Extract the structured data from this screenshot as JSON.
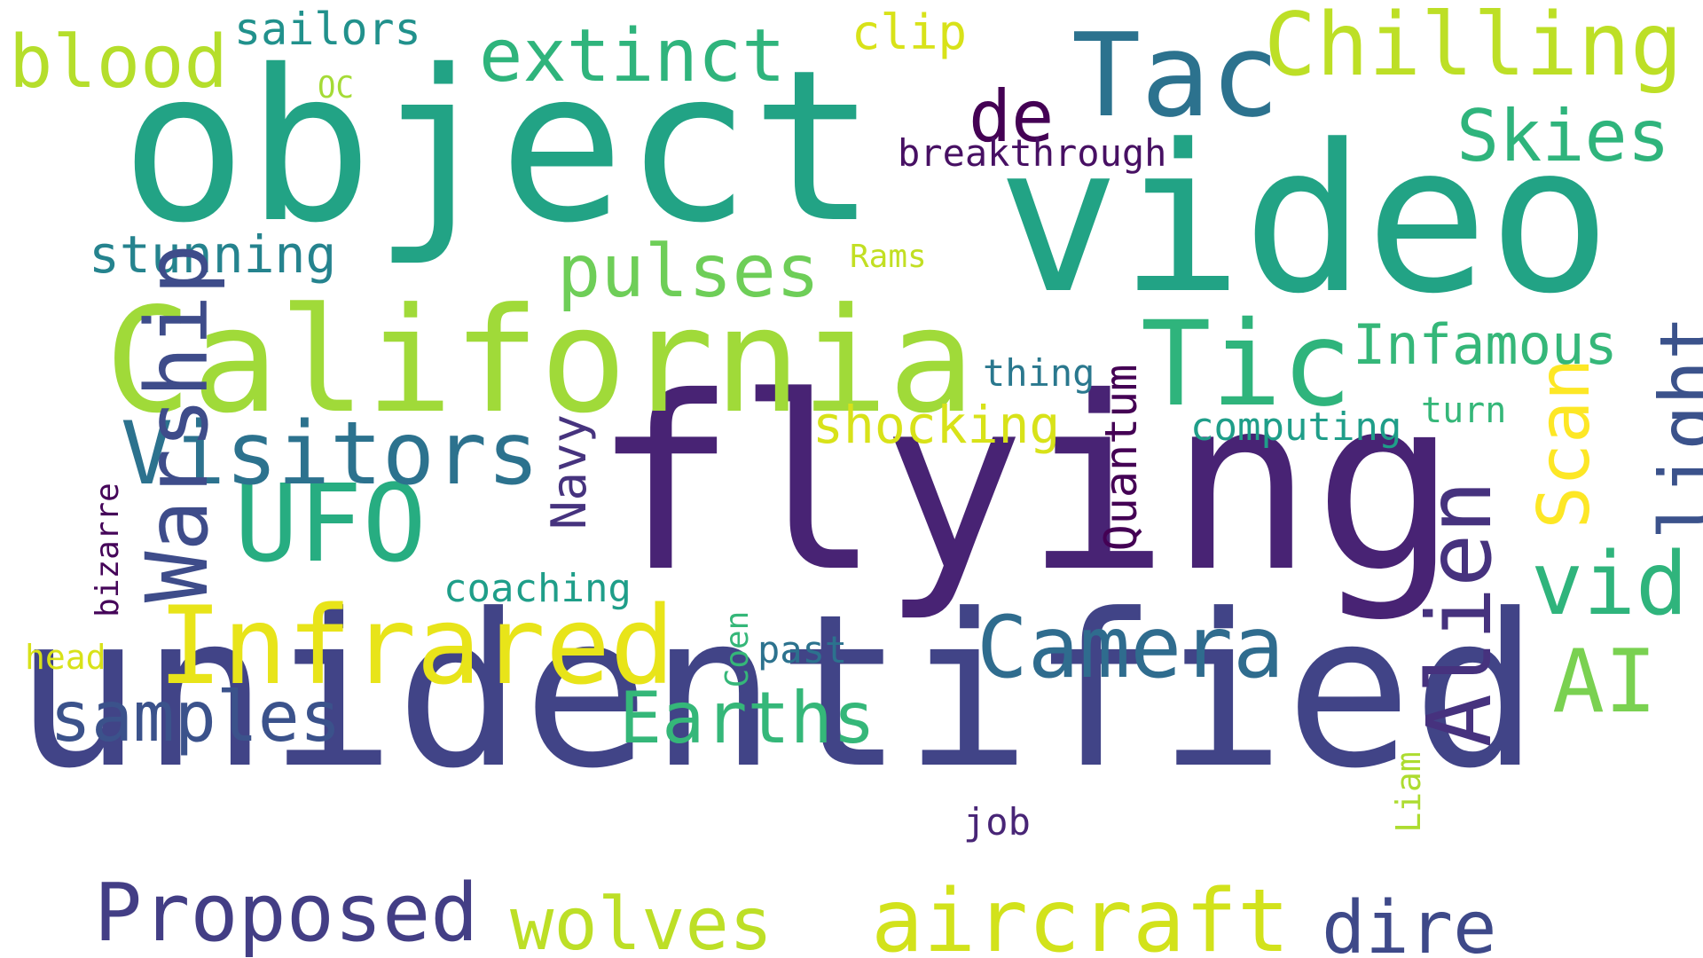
{
  "word_cloud": {
    "words": [
      {
        "text": "unidentified",
        "color": "#414487"
      },
      {
        "text": "flying",
        "color": "#482374"
      },
      {
        "text": "object",
        "color": "#22a385"
      },
      {
        "text": "video",
        "color": "#22a385"
      },
      {
        "text": "California",
        "color": "#a0da39"
      },
      {
        "text": "Tac",
        "color": "#2c728e"
      },
      {
        "text": "Tic",
        "color": "#2fb47c"
      },
      {
        "text": "Chilling",
        "color": "#bddf26"
      },
      {
        "text": "Infrared",
        "color": "#e8e419"
      },
      {
        "text": "UFO",
        "color": "#27ad81"
      },
      {
        "text": "Visitors",
        "color": "#2c728e"
      },
      {
        "text": "Warship",
        "color": "#3e4c8a"
      },
      {
        "text": "Alien",
        "color": "#46327e"
      },
      {
        "text": "aircraft",
        "color": "#d2e21b"
      },
      {
        "text": "Camera",
        "color": "#2f6c8e"
      },
      {
        "text": "Proposed",
        "color": "#433e85"
      },
      {
        "text": "wolves",
        "color": "#bddf26"
      },
      {
        "text": "Earths",
        "color": "#35b779"
      },
      {
        "text": "samples",
        "color": "#3b528b"
      },
      {
        "text": "extinct",
        "color": "#2fb47c"
      },
      {
        "text": "blood",
        "color": "#b5de2b"
      },
      {
        "text": "pulses",
        "color": "#6ece58"
      },
      {
        "text": "Skies",
        "color": "#2fb47c"
      },
      {
        "text": "vid",
        "color": "#2fb47c"
      },
      {
        "text": "AI",
        "color": "#7ad151"
      },
      {
        "text": "light",
        "color": "#3b528b"
      },
      {
        "text": "Scan",
        "color": "#fde725"
      },
      {
        "text": "dire",
        "color": "#3e4989"
      },
      {
        "text": "Infamous",
        "color": "#35b779"
      },
      {
        "text": "stunning",
        "color": "#25838e"
      },
      {
        "text": "shocking",
        "color": "#d8e219"
      },
      {
        "text": "Quantum",
        "color": "#440154"
      },
      {
        "text": "Navy",
        "color": "#46337e"
      },
      {
        "text": "de",
        "color": "#440154"
      },
      {
        "text": "sailors",
        "color": "#21918c"
      },
      {
        "text": "clip",
        "color": "#d8e219"
      },
      {
        "text": "breakthrough",
        "color": "#471063"
      },
      {
        "text": "computing",
        "color": "#1f9e89"
      },
      {
        "text": "thing",
        "color": "#2a788e"
      },
      {
        "text": "coaching",
        "color": "#1f9e89"
      },
      {
        "text": "past",
        "color": "#2c728e"
      },
      {
        "text": "Coen",
        "color": "#35b779"
      },
      {
        "text": "job",
        "color": "#482576"
      },
      {
        "text": "Liam",
        "color": "#addc30"
      },
      {
        "text": "turn",
        "color": "#35b779"
      },
      {
        "text": "Rams",
        "color": "#c2df23"
      },
      {
        "text": "OC",
        "color": "#a5db36"
      },
      {
        "text": "bizarre",
        "color": "#450559"
      },
      {
        "text": "head",
        "color": "#d8e219"
      }
    ]
  }
}
